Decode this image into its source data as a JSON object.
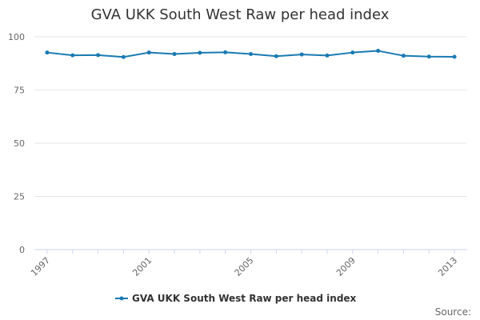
{
  "chart_data": {
    "type": "line",
    "title": "GVA UKK South West Raw per head index",
    "xlabel": "",
    "ylabel": "",
    "ylim": [
      0,
      100
    ],
    "xlim": [
      1997,
      2013
    ],
    "y_ticks": [
      "0",
      "25",
      "50",
      "75",
      "100"
    ],
    "x_ticks": [
      "1997",
      "2001",
      "2005",
      "2009",
      "2013"
    ],
    "grid": true,
    "legend_position": "bottom-center",
    "x": [
      1997,
      1998,
      1999,
      2000,
      2001,
      2002,
      2003,
      2004,
      2005,
      2006,
      2007,
      2008,
      2009,
      2010,
      2011,
      2012,
      2013
    ],
    "series": [
      {
        "name": "GVA UKK South West Raw per head index",
        "color": "#1a7ab3",
        "values": [
          92.6,
          91.3,
          91.4,
          90.5,
          92.6,
          91.9,
          92.5,
          92.7,
          91.9,
          90.9,
          91.7,
          91.2,
          92.6,
          93.4,
          91.1,
          90.7,
          90.6
        ]
      }
    ],
    "source": "Source:"
  }
}
